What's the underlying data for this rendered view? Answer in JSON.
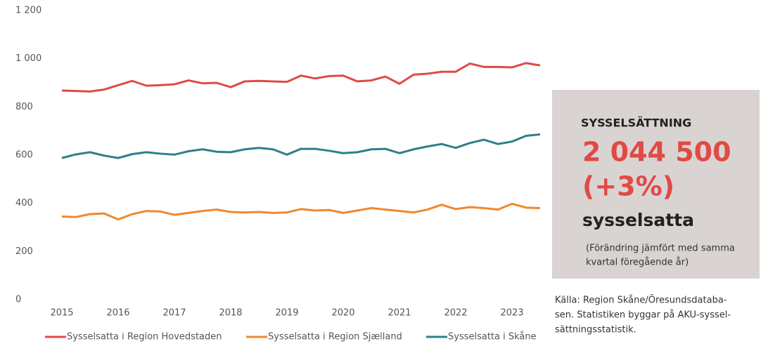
{
  "chart_data": {
    "type": "line",
    "categories": [
      "2015",
      null,
      null,
      null,
      "2016",
      null,
      null,
      null,
      "2017",
      null,
      null,
      null,
      "2018",
      null,
      null,
      null,
      "2019",
      null,
      null,
      null,
      "2020",
      null,
      null,
      null,
      "2021",
      null,
      null,
      null,
      "2022",
      null,
      null,
      null,
      "2023",
      null,
      null
    ],
    "series": [
      {
        "name": "Sysselsatta i Region Hovedstaden",
        "color": "#e04a45",
        "values": [
          868,
          866,
          864,
          872,
          890,
          908,
          888,
          890,
          894,
          910,
          898,
          900,
          882,
          906,
          908,
          906,
          904,
          930,
          918,
          928,
          930,
          906,
          910,
          926,
          896,
          934,
          938,
          946,
          946,
          980,
          966,
          966,
          964,
          982,
          972
        ]
      },
      {
        "name": "Sysselsatta i Region Sjælland",
        "color": "#f0882e",
        "values": [
          345,
          343,
          355,
          358,
          333,
          355,
          368,
          366,
          352,
          360,
          368,
          374,
          364,
          362,
          364,
          360,
          362,
          376,
          370,
          372,
          360,
          370,
          380,
          374,
          368,
          362,
          374,
          394,
          376,
          384,
          380,
          374,
          398,
          382,
          380
        ]
      },
      {
        "name": "Sysselsatta i Skåne",
        "color": "#2e7f8a",
        "values": [
          588,
          603,
          612,
          598,
          588,
          604,
          612,
          606,
          602,
          616,
          624,
          614,
          612,
          624,
          630,
          624,
          602,
          626,
          626,
          618,
          608,
          612,
          624,
          626,
          608,
          624,
          636,
          646,
          630,
          650,
          664,
          646,
          656,
          680,
          686
        ]
      }
    ],
    "ylim": [
      0,
      1200
    ],
    "yticks": [
      0,
      200,
      400,
      600,
      800,
      {
        "value": 1000,
        "label": "1 000"
      },
      {
        "value": 1200,
        "label": "1 200"
      }
    ],
    "legend": "bottom",
    "source": [
      "Källa: Region Skåne/Öresundsdataba-",
      "sen. Statistiken byggar på AKU-syssel-",
      "sättningsstatistik."
    ]
  },
  "panel": {
    "heading": "SYSSELSÄTTNING",
    "figure": "2 044 500",
    "change": "(+3%)",
    "unit": "sysselsatta",
    "note": [
      "(Förändring jämfört med samma",
      "kvartal föregående år)"
    ]
  }
}
